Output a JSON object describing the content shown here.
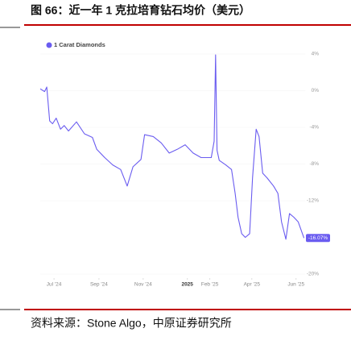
{
  "chart_data": {
    "type": "line",
    "title": "图 66：近一年 1 克拉培育钻石均价（美元）",
    "source": "资料来源：Stone Algo，中原证券研究所",
    "series": [
      {
        "name": "1 Carat Diamonds",
        "color": "#6a5cf0",
        "x": [
          0,
          6,
          9,
          13,
          17,
          22,
          28,
          33,
          39,
          50,
          61,
          72,
          78,
          89,
          100,
          111,
          120,
          128,
          139,
          144,
          156,
          167,
          178,
          189,
          200,
          211,
          222,
          236,
          240,
          242,
          244,
          247,
          256,
          264,
          269,
          273,
          278,
          283,
          289,
          293,
          298,
          302,
          307,
          313,
          322,
          328,
          333,
          339,
          344,
          350,
          356,
          364
        ],
        "values": [
          0.2,
          -0.1,
          0.4,
          -3.3,
          -3.6,
          -3.0,
          -4.2,
          -3.8,
          -4.4,
          -3.4,
          -4.7,
          -5.1,
          -6.4,
          -7.3,
          -8.1,
          -8.6,
          -10.4,
          -8.3,
          -7.5,
          -4.8,
          -5.0,
          -5.7,
          -6.8,
          -6.4,
          -5.9,
          -6.8,
          -7.3,
          -7.3,
          -5.5,
          3.9,
          -6.5,
          -7.6,
          -8.1,
          -8.6,
          -11.2,
          -13.8,
          -15.6,
          -16.0,
          -15.6,
          -9.5,
          -4.2,
          -5.0,
          -9.0,
          -9.5,
          -10.4,
          -11.2,
          -14.3,
          -16.2,
          -13.4,
          -13.8,
          -14.3,
          -16.07
        ],
        "last_value_label": "-16.07%"
      }
    ],
    "xlim": [
      0,
      366
    ],
    "xticks": [
      {
        "value": 19,
        "label": "Jul '24"
      },
      {
        "value": 81,
        "label": "Sep '24"
      },
      {
        "value": 142,
        "label": "Nov '24"
      },
      {
        "value": 203,
        "label": "2025"
      },
      {
        "value": 234,
        "label": "Feb '25"
      },
      {
        "value": 292,
        "label": "Apr '25"
      },
      {
        "value": 353,
        "label": "Jun '25"
      }
    ],
    "ylim": [
      -20,
      4
    ],
    "yticks": [
      {
        "value": 4,
        "label": "4%"
      },
      {
        "value": 0,
        "label": "0%"
      },
      {
        "value": -4,
        "label": "-4%"
      },
      {
        "value": -8,
        "label": "-8%"
      },
      {
        "value": -12,
        "label": "-12%"
      },
      {
        "value": -20,
        "label": "-20%"
      }
    ]
  }
}
